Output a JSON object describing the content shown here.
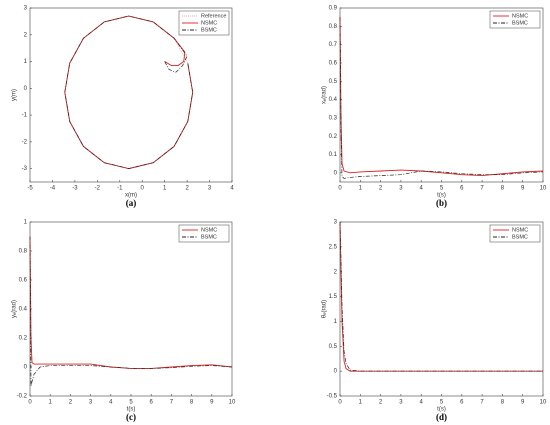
{
  "chart_data": [
    {
      "type": "line-xy",
      "caption": "(a)",
      "xlabel": "x(m)",
      "ylabel": "y(m)",
      "xlim": [
        -5,
        4
      ],
      "xticks": [
        -5,
        -4,
        -3,
        -2,
        -1,
        0,
        1,
        2,
        3,
        4
      ],
      "ylim": [
        -3.5,
        3
      ],
      "yticks": [
        -3,
        -2,
        -1,
        0,
        1,
        2,
        3
      ],
      "legend": "upper right",
      "series": [
        {
          "name": "Reference",
          "color": "#f4a0a0",
          "style": "dotted",
          "x": [
            2.25,
            2.03,
            1.42,
            0.49,
            -0.6,
            -1.69,
            -2.62,
            -3.23,
            -3.45,
            -3.23,
            -2.62,
            -1.69,
            -0.6,
            0.49,
            1.42,
            2.03,
            2.25
          ],
          "y": [
            -0.15,
            0.94,
            1.87,
            2.48,
            2.7,
            2.48,
            1.87,
            0.94,
            -0.15,
            -1.24,
            -2.17,
            -2.78,
            -3.0,
            -2.78,
            -2.17,
            -1.24,
            -0.15
          ]
        },
        {
          "name": "NSMC",
          "color": "#e02020",
          "style": "solid",
          "x": [
            1,
            1.3,
            1.6,
            1.85,
            1.9,
            1.42,
            0.49,
            -0.6,
            -1.69,
            -2.62,
            -3.23,
            -3.45,
            -3.23,
            -2.62,
            -1.69,
            -0.6,
            0.49,
            1.42,
            2.03,
            2.25,
            2.03
          ],
          "y": [
            1,
            0.85,
            0.85,
            1.0,
            1.35,
            1.87,
            2.48,
            2.7,
            2.48,
            1.87,
            0.94,
            -0.15,
            -1.24,
            -2.17,
            -2.78,
            -3.0,
            -2.78,
            -2.17,
            -1.24,
            -0.15,
            0.94
          ]
        },
        {
          "name": "BSMC",
          "color": "#222222",
          "style": "dashdot",
          "x": [
            1,
            1.2,
            1.5,
            1.8,
            2.0,
            1.42,
            0.49,
            -0.6,
            -1.69,
            -2.62,
            -3.23,
            -3.45,
            -3.23,
            -2.62,
            -1.69,
            -0.6,
            0.49,
            1.42,
            2.03,
            2.25,
            2.03
          ],
          "y": [
            1,
            0.7,
            0.6,
            0.85,
            1.2,
            1.87,
            2.48,
            2.7,
            2.48,
            1.87,
            0.94,
            -0.15,
            -1.24,
            -2.17,
            -2.78,
            -3.0,
            -2.78,
            -2.17,
            -1.24,
            -0.15,
            0.94
          ]
        }
      ]
    },
    {
      "type": "line",
      "caption": "(b)",
      "xlabel": "t(s)",
      "ylabel": "xₑ(rad)",
      "xlim": [
        0,
        10
      ],
      "xticks": [
        0,
        1,
        2,
        3,
        4,
        5,
        6,
        7,
        8,
        9,
        10
      ],
      "ylim": [
        -0.05,
        0.9
      ],
      "yticks": [
        0,
        0.1,
        0.2,
        0.3,
        0.4,
        0.5,
        0.6,
        0.7,
        0.8,
        0.9
      ],
      "legend": "upper right",
      "x": [
        0,
        0.05,
        0.1,
        0.2,
        0.5,
        1,
        2,
        3,
        4,
        5,
        6,
        7,
        8,
        9,
        10
      ],
      "series": [
        {
          "name": "NSMC",
          "color": "#e02020",
          "style": "solid",
          "values": [
            0.85,
            0.3,
            0.05,
            0.01,
            0.0,
            0.005,
            0.01,
            0.015,
            0.01,
            0.0,
            -0.01,
            -0.015,
            -0.005,
            0.005,
            0.01
          ]
        },
        {
          "name": "BSMC",
          "color": "#222222",
          "style": "dashdot",
          "values": [
            0.85,
            0.2,
            -0.02,
            -0.03,
            -0.025,
            -0.02,
            -0.015,
            -0.01,
            0.01,
            0.005,
            -0.005,
            -0.01,
            -0.01,
            0.0,
            0.005
          ]
        }
      ]
    },
    {
      "type": "line",
      "caption": "(c)",
      "xlabel": "t(s)",
      "ylabel": "yₑ(rad)",
      "xlim": [
        0,
        10
      ],
      "xticks": [
        0,
        1,
        2,
        3,
        4,
        5,
        6,
        7,
        8,
        9,
        10
      ],
      "ylim": [
        -0.2,
        1
      ],
      "yticks": [
        -0.2,
        0,
        0.2,
        0.4,
        0.6,
        0.8,
        1
      ],
      "legend": "upper right",
      "x": [
        0,
        0.05,
        0.1,
        0.2,
        0.5,
        1,
        2,
        3,
        4,
        5,
        6,
        7,
        8,
        9,
        10
      ],
      "series": [
        {
          "name": "NSMC",
          "color": "#e02020",
          "style": "solid",
          "values": [
            0.9,
            0.2,
            0.03,
            0.02,
            0.02,
            0.02,
            0.02,
            0.02,
            0.0,
            -0.01,
            -0.01,
            0.0,
            0.01,
            0.015,
            0.0
          ]
        },
        {
          "name": "BSMC",
          "color": "#222222",
          "style": "dashdot",
          "values": [
            0.9,
            -0.13,
            -0.1,
            -0.05,
            0.0,
            0.01,
            0.01,
            0.01,
            0.0,
            -0.01,
            -0.01,
            -0.005,
            0.005,
            0.01,
            0.0
          ]
        }
      ]
    },
    {
      "type": "line",
      "caption": "(d)",
      "xlabel": "t(s)",
      "ylabel": "θₑ(rad)",
      "xlim": [
        0,
        10
      ],
      "xticks": [
        0,
        1,
        2,
        3,
        4,
        5,
        6,
        7,
        8,
        9,
        10
      ],
      "ylim": [
        -0.5,
        3
      ],
      "yticks": [
        -0.5,
        0,
        0.5,
        1,
        1.5,
        2,
        2.5,
        3
      ],
      "legend": "upper right",
      "x": [
        0,
        0.05,
        0.1,
        0.2,
        0.3,
        0.5,
        1,
        2,
        3,
        4,
        5,
        6,
        7,
        8,
        10
      ],
      "series": [
        {
          "name": "NSMC",
          "color": "#e02020",
          "style": "solid",
          "values": [
            3,
            2.0,
            1.0,
            0.2,
            0.05,
            0.0,
            0.0,
            0.0,
            0.0,
            0.0,
            0.0,
            0.0,
            0.0,
            0.0,
            0.0
          ]
        },
        {
          "name": "BSMC",
          "color": "#222222",
          "style": "dashdot",
          "values": [
            3,
            2.2,
            1.3,
            0.4,
            0.15,
            0.02,
            0.0,
            0.0,
            0.0,
            0.0,
            0.0,
            0.0,
            0.0,
            0.0,
            0.0
          ]
        }
      ]
    }
  ]
}
